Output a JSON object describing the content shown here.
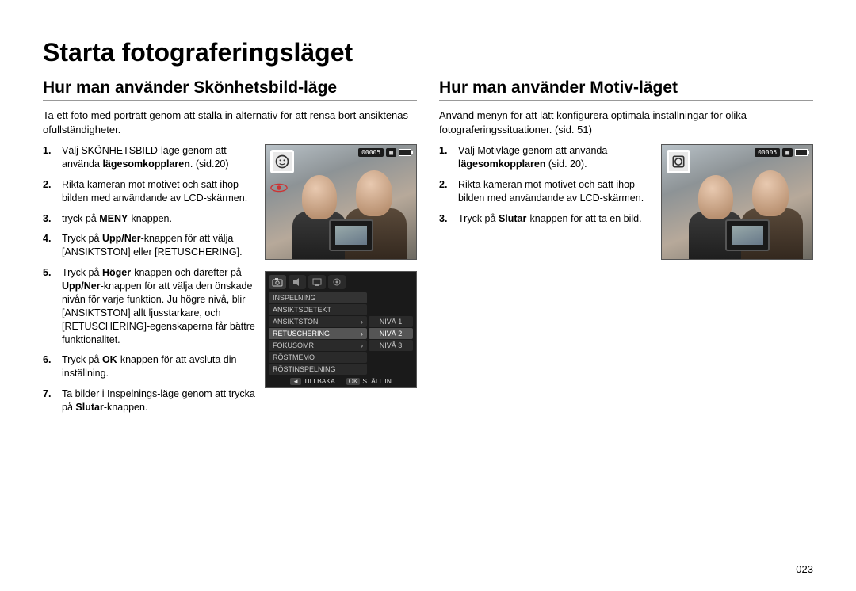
{
  "page_title": "Starta fotograferingsläget",
  "page_number": "023",
  "left": {
    "title": "Hur man använder Skönhetsbild-läge",
    "intro": "Ta ett foto med porträtt genom att ställa in alternativ för att rensa bort ansiktenas ofullständigheter.",
    "steps": [
      {
        "n": "1.",
        "pre": "Välj SKÖNHETSBILD-läge genom att använda ",
        "bold": "lägesomkopplaren",
        "post": ". (sid.20)"
      },
      {
        "n": "2.",
        "pre": "Rikta kameran mot motivet och sätt ihop bilden med användande av LCD-skärmen.",
        "bold": "",
        "post": ""
      },
      {
        "n": "3.",
        "pre": "tryck på ",
        "bold": "MENY",
        "post": "-knappen."
      },
      {
        "n": "4.",
        "pre": "Tryck på ",
        "bold": "Upp/Ner",
        "post": "-knappen för att välja [ANSIKTSTON] eller [RETUSCHERING]."
      },
      {
        "n": "5.",
        "pre": "Tryck på ",
        "bold": "Höger",
        "post": "-knappen och därefter på ",
        "bold2": "Upp/Ner",
        "post2": "-knappen för att välja den önskade nivån för varje funktion. Ju högre nivå, blir [ANSIKTSTON] allt ljusstarkare, och [RETUSCHERING]-egenskaperna får bättre funktionalitet."
      },
      {
        "n": "6.",
        "pre": "Tryck på ",
        "bold": "OK",
        "post": "-knappen för att avsluta din inställning."
      },
      {
        "n": "7.",
        "pre": "Ta bilder i Inspelnings-läge genom att trycka på ",
        "bold": "Slutar",
        "post": "-knappen."
      }
    ],
    "photo_counter": "00005",
    "menu": {
      "tabs_count": 4,
      "header": "INSPELNING",
      "items": [
        "ANSIKTSDETEKT",
        "ANSIKTSTON",
        "RETUSCHERING",
        "FOKUSOMR",
        "RÖSTMEMO",
        "RÖSTINSPELNING"
      ],
      "selected_index": 2,
      "levels": [
        "NIVÅ 1",
        "NIVÅ 2",
        "NIVÅ 3"
      ],
      "levels_selected": 1,
      "foot_back_key": "◄",
      "foot_back": "TILLBAKA",
      "foot_ok_key": "OK",
      "foot_ok": "STÄLL IN"
    }
  },
  "right": {
    "title": "Hur man använder Motiv-läget",
    "intro": "Använd menyn för att lätt konfigurera optimala inställningar för olika fotograferingssituationer. (sid. 51)",
    "steps": [
      {
        "n": "1.",
        "pre": "Välj Motivläge genom att använda ",
        "bold": "lägesomkopplaren",
        "post": " (sid. 20)."
      },
      {
        "n": "2.",
        "pre": "Rikta kameran mot motivet och sätt ihop bilden med användande av LCD-skärmen.",
        "bold": "",
        "post": ""
      },
      {
        "n": "3.",
        "pre": "Tryck på ",
        "bold": "Slutar",
        "post": "-knappen för att ta en bild."
      }
    ],
    "photo_counter": "00005"
  }
}
